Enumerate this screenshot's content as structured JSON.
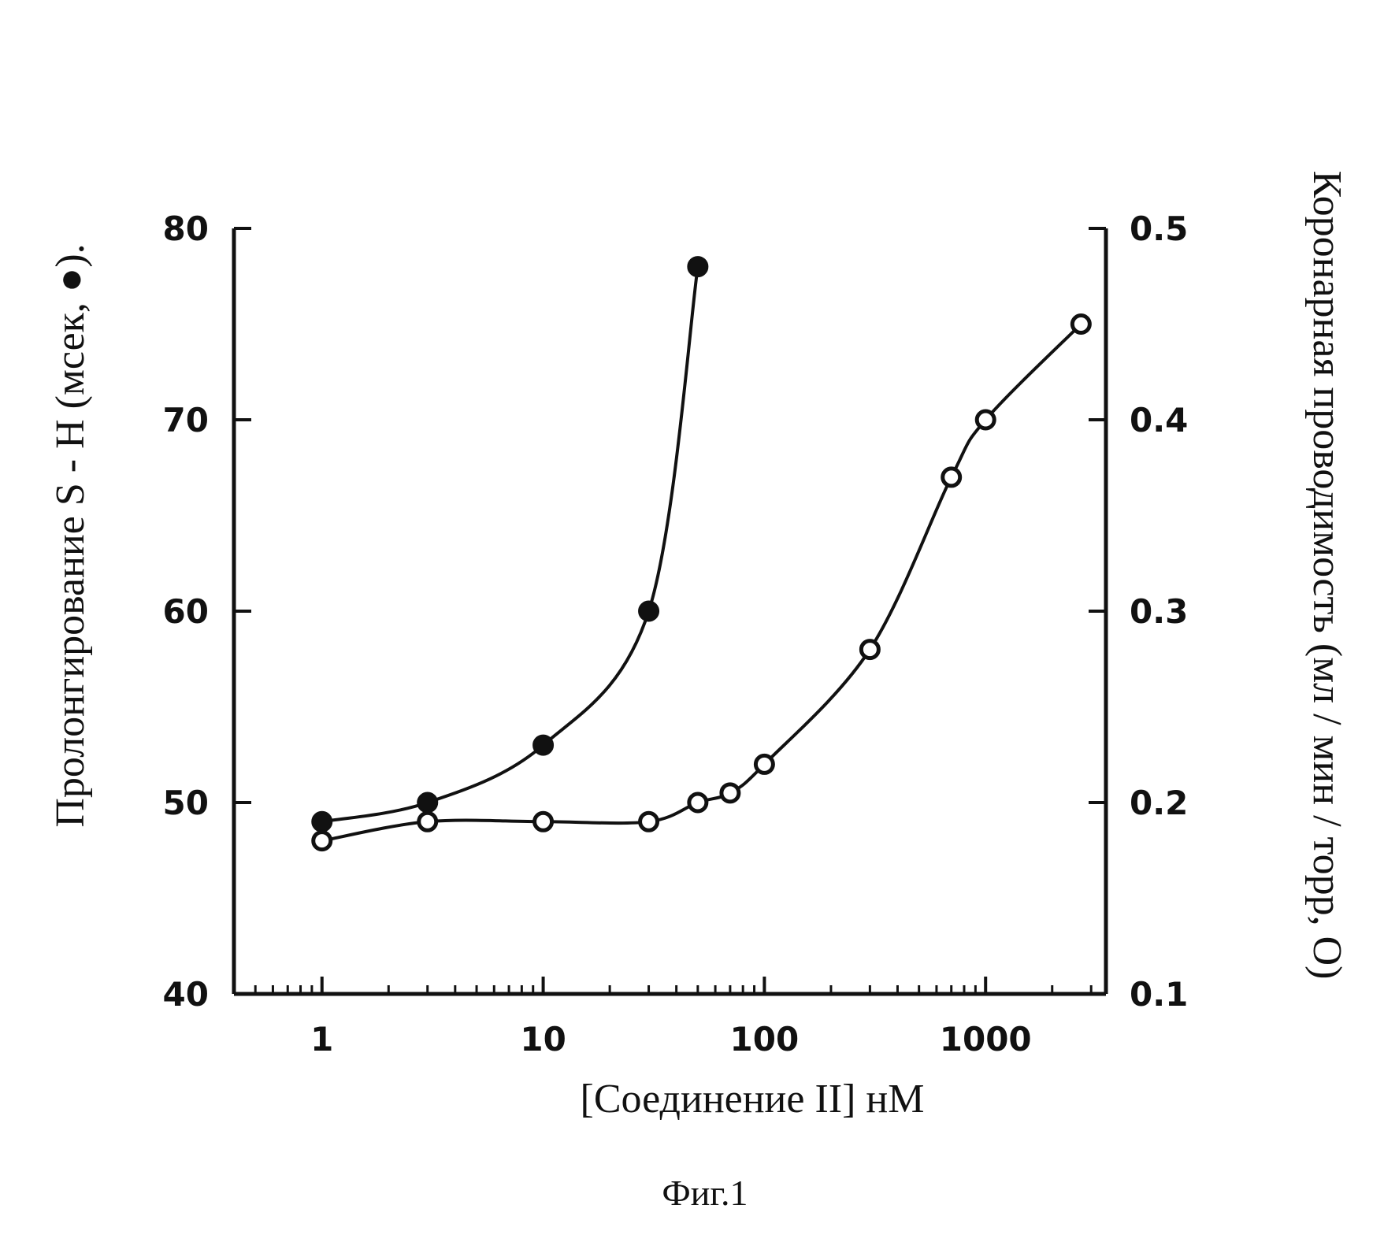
{
  "chart_data": {
    "type": "line",
    "x_scale": "log",
    "xlabel": "[Соединение II] нМ",
    "ylabel_left": "Пролонгирование S - H (мсек, ●).",
    "ylabel_right": "Коронарная проводимость (мл / мин / торр, O)",
    "caption": "Фиг.1",
    "xlim": [
      0.4,
      3500
    ],
    "ylim_left": [
      40,
      80
    ],
    "ylim_right": [
      0.1,
      0.5
    ],
    "x_ticks": [
      "1",
      "10",
      "100",
      "1000"
    ],
    "y_left_ticks": [
      "40",
      "50",
      "60",
      "70",
      "80"
    ],
    "y_right_ticks": [
      "0.1",
      "0.2",
      "0.3",
      "0.4",
      "0.5"
    ],
    "grid": false,
    "series": [
      {
        "axis": "left",
        "marker": "filled-circle",
        "x": [
          1,
          3,
          10,
          30,
          50
        ],
        "y": [
          49,
          50,
          53,
          60,
          78
        ]
      },
      {
        "axis": "right",
        "marker": "open-circle",
        "x": [
          1,
          3,
          10,
          30,
          50,
          70,
          100,
          300,
          700,
          1000,
          2700
        ],
        "y": [
          0.18,
          0.19,
          0.19,
          0.19,
          0.2,
          0.205,
          0.22,
          0.28,
          0.37,
          0.4,
          0.45
        ]
      }
    ]
  }
}
